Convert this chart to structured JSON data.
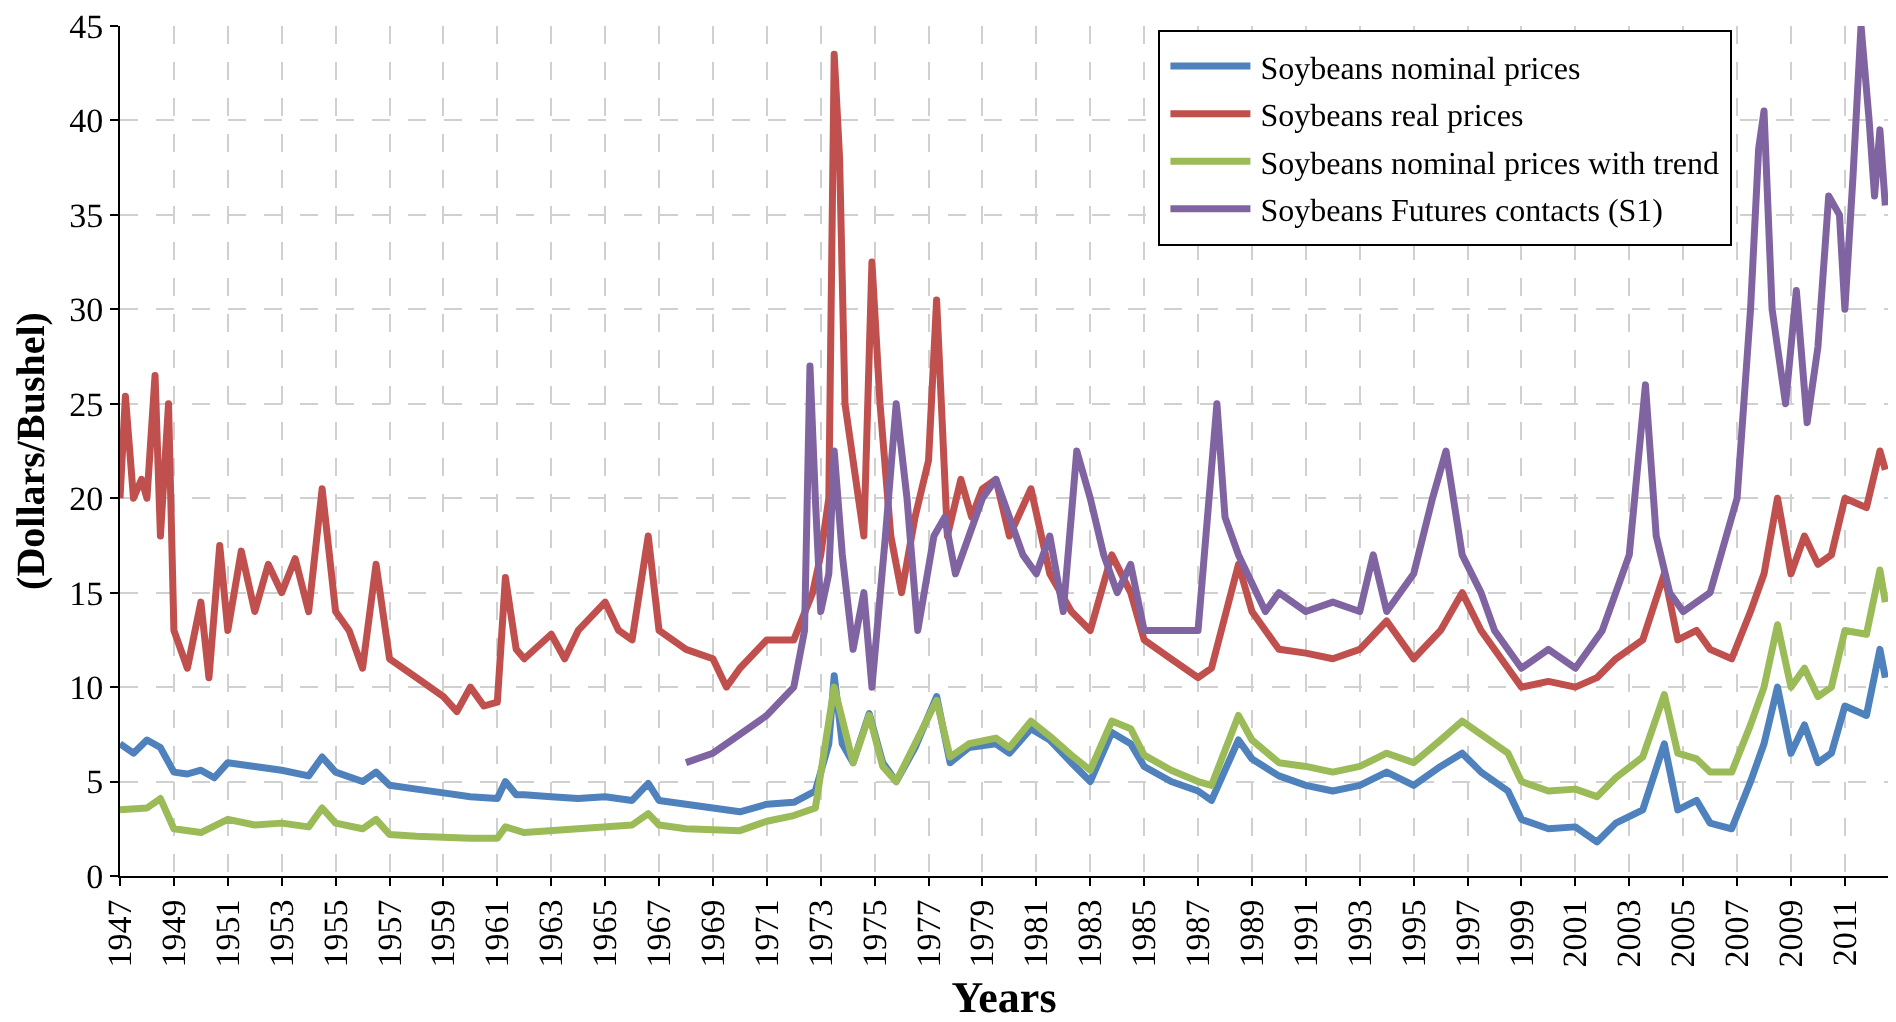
{
  "chart_data": {
    "type": "line",
    "xlabel": "Years",
    "ylabel": "(Dollars/Bushel)",
    "xlim": [
      1947,
      2012.6
    ],
    "xticks": [
      1947,
      1949,
      1951,
      1953,
      1955,
      1957,
      1959,
      1961,
      1963,
      1965,
      1967,
      1969,
      1971,
      1973,
      1975,
      1977,
      1979,
      1981,
      1983,
      1985,
      1987,
      1989,
      1991,
      1993,
      1995,
      1997,
      1999,
      2001,
      2003,
      2005,
      2007,
      2009,
      2011
    ],
    "ylim": [
      0,
      45
    ],
    "yticks": [
      0,
      5,
      10,
      15,
      20,
      25,
      30,
      35,
      40,
      45
    ],
    "grid": true,
    "legend": "top right",
    "line_style": "solid",
    "marker": "none",
    "series": [
      {
        "name": "Soybeans nominal prices",
        "color": "#4f81bd",
        "x": [
          1947,
          1947.5,
          1948,
          1948.5,
          1949,
          1949.5,
          1950,
          1950.5,
          1951,
          1952,
          1953,
          1954,
          1954.5,
          1955,
          1956,
          1956.5,
          1957,
          1958,
          1959,
          1960,
          1961,
          1961.3,
          1961.7,
          1962,
          1963,
          1964,
          1965,
          1966,
          1966.6,
          1967,
          1968,
          1969,
          1970,
          1971,
          1972,
          1972.8,
          1973.3,
          1973.5,
          1973.8,
          1974.2,
          1974.8,
          1975.3,
          1975.8,
          1976.5,
          1977.3,
          1977.8,
          1978.5,
          1979.5,
          1980,
          1980.8,
          1981.5,
          1982.3,
          1983,
          1983.8,
          1984.5,
          1985,
          1986,
          1987,
          1987.5,
          1988.5,
          1989,
          1990,
          1991,
          1992,
          1993,
          1994,
          1995,
          1996,
          1996.8,
          1997.5,
          1998.5,
          1999,
          2000,
          2001,
          2001.8,
          2002.5,
          2003.5,
          2004.3,
          2004.8,
          2005.5,
          2006,
          2006.8,
          2007.5,
          2008,
          2008.5,
          2009,
          2009.5,
          2010,
          2010.5,
          2011,
          2011.8,
          2012.3,
          2012.5
        ],
        "values": [
          7,
          6.5,
          7.2,
          6.8,
          5.5,
          5.4,
          5.6,
          5.2,
          6.0,
          5.8,
          5.6,
          5.3,
          6.3,
          5.5,
          5.0,
          5.5,
          4.8,
          4.6,
          4.4,
          4.2,
          4.1,
          5.0,
          4.3,
          4.3,
          4.2,
          4.1,
          4.2,
          4.0,
          4.9,
          4.0,
          3.8,
          3.6,
          3.4,
          3.8,
          3.9,
          4.5,
          7,
          10.6,
          7,
          6,
          8.6,
          6,
          5,
          6.8,
          9.5,
          6,
          6.8,
          7.0,
          6.5,
          7.8,
          7.2,
          6.0,
          5.0,
          7.6,
          7.0,
          5.8,
          5.0,
          4.5,
          4.0,
          7.2,
          6.2,
          5.3,
          4.8,
          4.5,
          4.8,
          5.5,
          4.8,
          5.8,
          6.5,
          5.5,
          4.5,
          3.0,
          2.5,
          2.6,
          1.8,
          2.8,
          3.5,
          7.0,
          3.5,
          4.0,
          2.8,
          2.5,
          5,
          7,
          10,
          6.5,
          8.0,
          6.0,
          6.5,
          9.0,
          8.5,
          12.0,
          10.5
        ]
      },
      {
        "name": "Soybeans real prices",
        "color": "#c0504d",
        "x": [
          1947,
          1947.2,
          1947.5,
          1947.8,
          1948,
          1948.3,
          1948.5,
          1948.8,
          1949,
          1949.5,
          1950,
          1950.3,
          1950.7,
          1951,
          1951.5,
          1952,
          1952.5,
          1953,
          1953.5,
          1954,
          1954.5,
          1955,
          1955.5,
          1956,
          1956.5,
          1957,
          1958,
          1959,
          1959.5,
          1960,
          1960.5,
          1961,
          1961.3,
          1961.7,
          1962,
          1963,
          1963.5,
          1964,
          1965,
          1965.5,
          1966,
          1966.6,
          1967,
          1968,
          1969,
          1969.5,
          1970,
          1971,
          1972,
          1972.7,
          1973,
          1973.3,
          1973.5,
          1973.7,
          1973.9,
          1974.3,
          1974.6,
          1974.9,
          1975.2,
          1975.6,
          1976,
          1976.5,
          1977,
          1977.3,
          1977.7,
          1978.2,
          1978.6,
          1979,
          1979.5,
          1980,
          1980.8,
          1981.5,
          1982.3,
          1983,
          1983.8,
          1984.5,
          1985,
          1986,
          1987,
          1987.5,
          1988.5,
          1989,
          1990,
          1991,
          1992,
          1993,
          1994,
          1995,
          1996,
          1996.8,
          1997.5,
          1998.5,
          1999,
          2000,
          2001,
          2001.8,
          2002.5,
          2003.5,
          2004.3,
          2004.8,
          2005.5,
          2006,
          2006.8,
          2007.5,
          2008,
          2008.5,
          2009,
          2009.5,
          2010,
          2010.5,
          2011,
          2011.8,
          2012.3,
          2012.5
        ],
        "values": [
          20,
          25.4,
          20,
          21,
          20,
          26.5,
          18,
          25,
          13,
          11,
          14.5,
          10.5,
          17.5,
          13,
          17.2,
          14,
          16.5,
          15,
          16.8,
          14,
          20.5,
          14,
          13,
          11,
          16.5,
          11.5,
          10.5,
          9.5,
          8.7,
          10,
          9,
          9.2,
          15.8,
          12,
          11.5,
          12.8,
          11.5,
          13,
          14.5,
          13,
          12.5,
          18,
          13,
          12,
          11.5,
          10,
          11,
          12.5,
          12.5,
          15,
          17,
          20,
          43.5,
          38,
          25,
          21,
          18,
          32.5,
          25,
          18,
          15,
          19,
          22,
          30.5,
          18,
          21,
          19,
          20.5,
          21,
          18,
          20.5,
          16,
          14,
          13,
          17,
          15,
          12.5,
          11.5,
          10.5,
          11,
          16.5,
          14,
          12,
          11.8,
          11.5,
          12,
          13.5,
          11.5,
          13,
          15,
          13,
          11,
          10,
          10.3,
          10,
          10.5,
          11.5,
          12.5,
          16,
          12.5,
          13,
          12,
          11.5,
          14,
          16,
          20,
          16,
          18,
          16.5,
          17,
          20,
          19.5,
          22.5,
          21.5
        ]
      },
      {
        "name": "Soybeans nominal prices with trend",
        "color": "#9bbb59",
        "x": [
          1947,
          1948,
          1948.5,
          1949,
          1950,
          1951,
          1952,
          1953,
          1954,
          1954.5,
          1955,
          1956,
          1956.5,
          1957,
          1958,
          1960,
          1961,
          1961.3,
          1962,
          1964,
          1966,
          1966.6,
          1967,
          1968,
          1970,
          1971,
          1972,
          1972.8,
          1973.5,
          1974.2,
          1974.8,
          1975.3,
          1975.8,
          1976.5,
          1977.3,
          1977.8,
          1978.5,
          1979.5,
          1980,
          1980.8,
          1981.5,
          1982.3,
          1983,
          1983.8,
          1984.5,
          1985,
          1986,
          1987,
          1987.5,
          1988.5,
          1989,
          1990,
          1991,
          1992,
          1993,
          1994,
          1995,
          1996,
          1996.8,
          1997.5,
          1998.5,
          1999,
          2000,
          2001,
          2001.8,
          2002.5,
          2003.5,
          2004.3,
          2004.8,
          2005.5,
          2006,
          2006.8,
          2007.5,
          2008,
          2008.5,
          2009,
          2009.5,
          2010,
          2010.5,
          2011,
          2011.8,
          2012.3,
          2012.5
        ],
        "values": [
          3.5,
          3.6,
          4.1,
          2.5,
          2.3,
          3.0,
          2.7,
          2.8,
          2.6,
          3.6,
          2.8,
          2.5,
          3.0,
          2.2,
          2.1,
          2.0,
          2.0,
          2.6,
          2.3,
          2.5,
          2.7,
          3.3,
          2.7,
          2.5,
          2.4,
          2.9,
          3.2,
          3.6,
          10.0,
          6,
          8.5,
          5.8,
          5.0,
          7,
          9.3,
          6.3,
          7,
          7.3,
          6.8,
          8.2,
          7.4,
          6.4,
          5.6,
          8.2,
          7.8,
          6.4,
          5.6,
          5.0,
          4.8,
          8.5,
          7.2,
          6.0,
          5.8,
          5.5,
          5.8,
          6.5,
          6.0,
          7.2,
          8.2,
          7.5,
          6.5,
          5.0,
          4.5,
          4.6,
          4.2,
          5.2,
          6.3,
          9.6,
          6.5,
          6.2,
          5.5,
          5.5,
          8,
          10,
          13.3,
          10,
          11,
          9.5,
          10,
          13,
          12.8,
          16.2,
          14.5
        ]
      },
      {
        "name": "Soybeans Futures contacts (S1)",
        "color": "#8064a2",
        "x": [
          1968,
          1969,
          1970,
          1971,
          1972,
          1972.4,
          1972.6,
          1972.8,
          1973.0,
          1973.3,
          1973.5,
          1973.8,
          1974.2,
          1974.6,
          1974.9,
          1975.4,
          1975.8,
          1976.2,
          1976.6,
          1977.2,
          1977.6,
          1978,
          1978.5,
          1979,
          1979.5,
          1980,
          1980.5,
          1981,
          1981.5,
          1982,
          1982.5,
          1983,
          1983.5,
          1984,
          1984.5,
          1985,
          1986,
          1987,
          1987.7,
          1988,
          1988.5,
          1989.5,
          1990,
          1991,
          1992,
          1993,
          1993.5,
          1994,
          1995,
          1995.7,
          1996.2,
          1996.8,
          1997.5,
          1998,
          1999,
          2000,
          2001,
          2002,
          2003,
          2003.6,
          2004,
          2004.5,
          2005,
          2006,
          2007,
          2007.5,
          2007.8,
          2008,
          2008.3,
          2008.8,
          2009.2,
          2009.6,
          2010,
          2010.4,
          2010.8,
          2011,
          2011.3,
          2011.6,
          2011.9,
          2012.1,
          2012.3,
          2012.5
        ],
        "values": [
          6,
          6.5,
          7.5,
          8.5,
          10,
          13,
          27,
          20,
          14,
          16,
          22.5,
          17,
          12,
          15,
          10,
          18,
          25,
          20,
          13,
          18,
          19,
          16,
          18,
          20,
          21,
          19,
          17,
          16,
          18,
          14,
          22.5,
          20,
          17,
          15,
          16.5,
          13,
          13,
          13,
          25,
          19,
          17,
          14,
          15,
          14,
          14.5,
          14,
          17,
          14,
          16,
          20,
          22.5,
          17,
          15,
          13,
          11,
          12,
          11,
          13,
          17,
          26,
          18,
          15,
          14,
          15,
          20,
          30,
          38.5,
          40.5,
          30,
          25,
          31,
          24,
          28,
          36,
          35,
          30,
          37,
          45,
          40,
          36,
          39.5,
          35.5
        ]
      }
    ]
  }
}
